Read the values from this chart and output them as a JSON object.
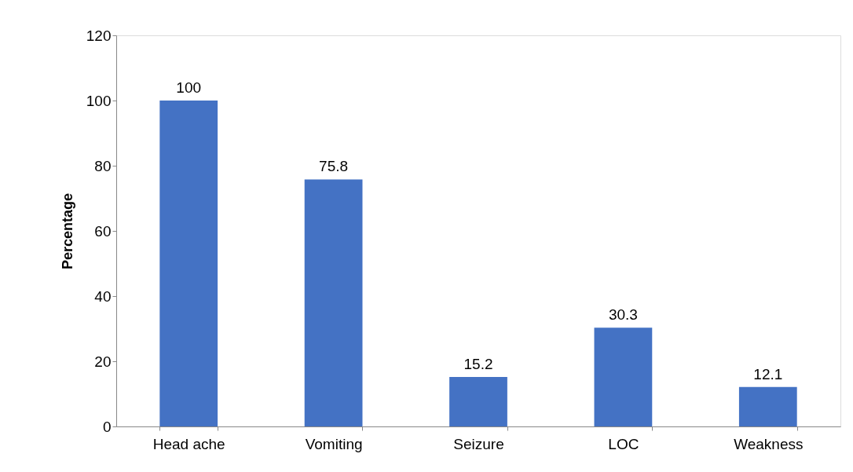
{
  "chart_data": {
    "type": "bar",
    "ylabel": "Percentage",
    "categories": [
      "Head ache",
      "Vomiting",
      "Seizure",
      "LOC",
      "Weakness"
    ],
    "values": [
      100,
      75.8,
      15.2,
      30.3,
      12.1
    ],
    "color": "#4472c4",
    "ylim": [
      0,
      120
    ],
    "yticks": [
      0,
      20,
      40,
      60,
      80,
      100,
      120
    ],
    "data_labels": true
  }
}
